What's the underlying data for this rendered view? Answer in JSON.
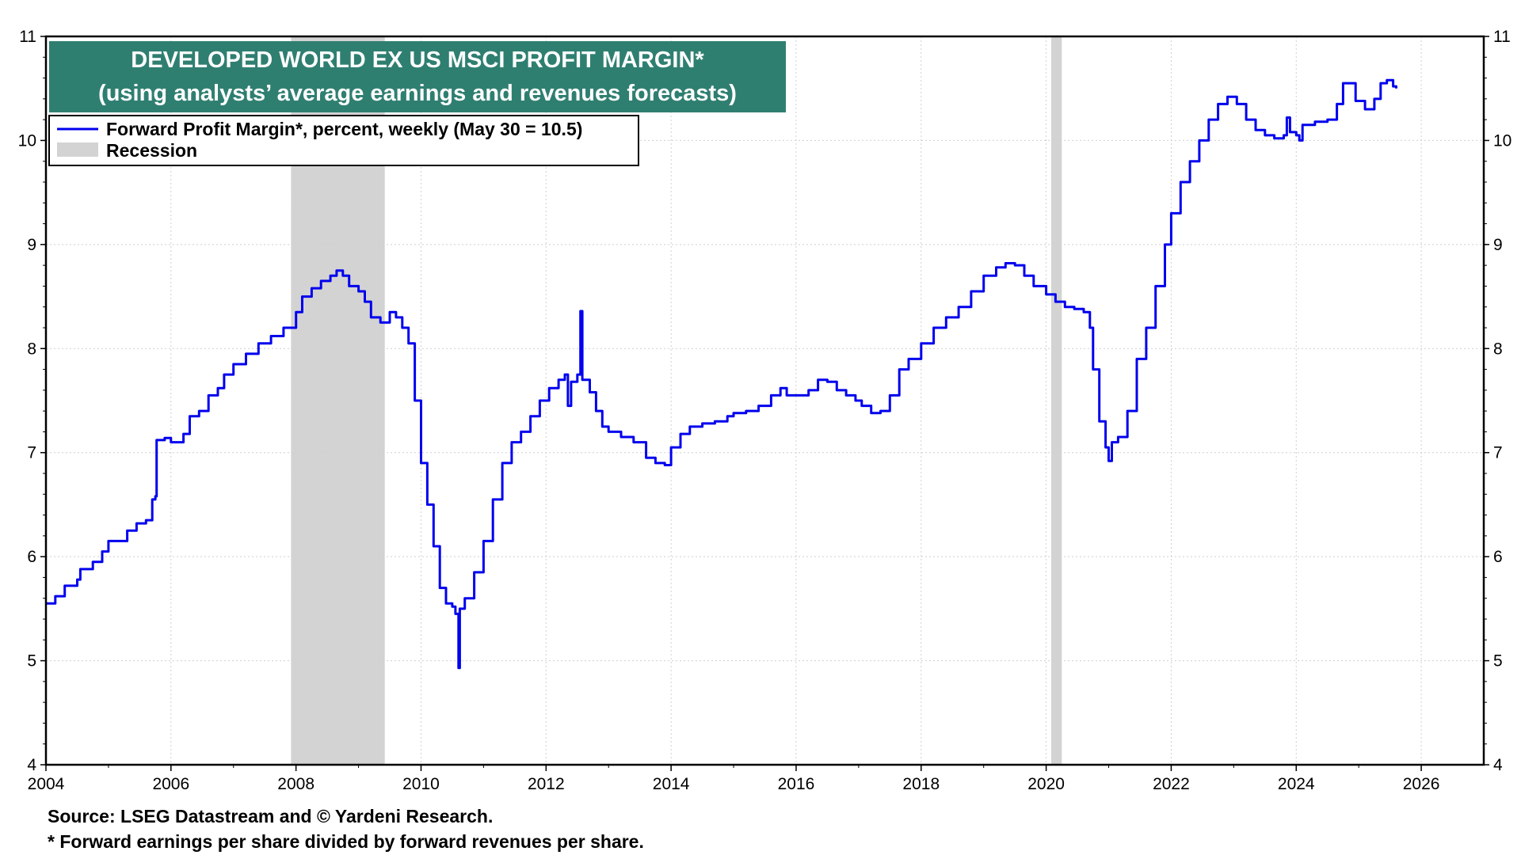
{
  "chart_data": {
    "type": "line",
    "title": "DEVELOPED WORLD EX US MSCI PROFIT MARGIN*",
    "subtitle": "(using analysts’ average earnings and revenues forecasts)",
    "x_range": [
      2004,
      2027
    ],
    "ylim": [
      4,
      11
    ],
    "x_ticks": [
      "2004",
      "2006",
      "2008",
      "2010",
      "2012",
      "2014",
      "2016",
      "2018",
      "2020",
      "2022",
      "2024",
      "2026"
    ],
    "y_ticks": [
      "4",
      "5",
      "6",
      "7",
      "8",
      "9",
      "10",
      "11"
    ],
    "grid": true,
    "legend_position": "top-left",
    "legend": [
      {
        "label": "Forward Profit Margin*, percent, weekly (May 30 = 10.5)",
        "color": "#0000ee"
      },
      {
        "label": "Recession",
        "color": "#d3d3d3"
      }
    ],
    "recessions": [
      [
        2007.92,
        2009.42
      ],
      [
        2020.08,
        2020.25
      ]
    ],
    "series": [
      {
        "name": "Forward Profit Margin",
        "color": "#0000ee",
        "points": [
          [
            2004.0,
            5.55
          ],
          [
            2004.1,
            5.55
          ],
          [
            2004.15,
            5.62
          ],
          [
            2004.3,
            5.72
          ],
          [
            2004.5,
            5.78
          ],
          [
            2004.55,
            5.88
          ],
          [
            2004.75,
            5.95
          ],
          [
            2004.9,
            6.05
          ],
          [
            2005.0,
            6.15
          ],
          [
            2005.2,
            6.15
          ],
          [
            2005.3,
            6.25
          ],
          [
            2005.45,
            6.32
          ],
          [
            2005.6,
            6.35
          ],
          [
            2005.7,
            6.55
          ],
          [
            2005.75,
            6.58
          ],
          [
            2005.77,
            7.12
          ],
          [
            2005.9,
            7.14
          ],
          [
            2006.0,
            7.1
          ],
          [
            2006.2,
            7.18
          ],
          [
            2006.3,
            7.35
          ],
          [
            2006.45,
            7.4
          ],
          [
            2006.6,
            7.55
          ],
          [
            2006.75,
            7.62
          ],
          [
            2006.85,
            7.75
          ],
          [
            2007.0,
            7.85
          ],
          [
            2007.2,
            7.95
          ],
          [
            2007.4,
            8.05
          ],
          [
            2007.6,
            8.12
          ],
          [
            2007.8,
            8.2
          ],
          [
            2008.0,
            8.35
          ],
          [
            2008.1,
            8.5
          ],
          [
            2008.25,
            8.58
          ],
          [
            2008.4,
            8.65
          ],
          [
            2008.55,
            8.7
          ],
          [
            2008.65,
            8.75
          ],
          [
            2008.75,
            8.7
          ],
          [
            2008.85,
            8.6
          ],
          [
            2009.0,
            8.55
          ],
          [
            2009.1,
            8.45
          ],
          [
            2009.2,
            8.3
          ],
          [
            2009.35,
            8.25
          ],
          [
            2009.5,
            8.35
          ],
          [
            2009.6,
            8.3
          ],
          [
            2009.7,
            8.2
          ],
          [
            2009.8,
            8.05
          ],
          [
            2009.9,
            7.5
          ],
          [
            2010.0,
            6.9
          ],
          [
            2010.1,
            6.5
          ],
          [
            2010.2,
            6.1
          ],
          [
            2010.3,
            5.7
          ],
          [
            2010.4,
            5.55
          ],
          [
            2010.5,
            5.52
          ],
          [
            2010.55,
            5.45
          ],
          [
            2010.6,
            4.93
          ],
          [
            2010.62,
            5.5
          ],
          [
            2010.7,
            5.6
          ],
          [
            2010.85,
            5.85
          ],
          [
            2011.0,
            6.15
          ],
          [
            2011.15,
            6.55
          ],
          [
            2011.3,
            6.9
          ],
          [
            2011.45,
            7.1
          ],
          [
            2011.6,
            7.2
          ],
          [
            2011.75,
            7.35
          ],
          [
            2011.9,
            7.5
          ],
          [
            2012.05,
            7.62
          ],
          [
            2012.2,
            7.7
          ],
          [
            2012.3,
            7.75
          ],
          [
            2012.35,
            7.45
          ],
          [
            2012.4,
            7.68
          ],
          [
            2012.5,
            7.75
          ],
          [
            2012.55,
            8.36
          ],
          [
            2012.58,
            7.7
          ],
          [
            2012.7,
            7.58
          ],
          [
            2012.8,
            7.4
          ],
          [
            2012.9,
            7.25
          ],
          [
            2013.0,
            7.2
          ],
          [
            2013.2,
            7.15
          ],
          [
            2013.4,
            7.1
          ],
          [
            2013.6,
            6.95
          ],
          [
            2013.75,
            6.9
          ],
          [
            2013.9,
            6.88
          ],
          [
            2014.0,
            7.05
          ],
          [
            2014.15,
            7.18
          ],
          [
            2014.3,
            7.25
          ],
          [
            2014.5,
            7.28
          ],
          [
            2014.7,
            7.3
          ],
          [
            2014.9,
            7.35
          ],
          [
            2015.0,
            7.38
          ],
          [
            2015.2,
            7.4
          ],
          [
            2015.4,
            7.45
          ],
          [
            2015.6,
            7.55
          ],
          [
            2015.75,
            7.62
          ],
          [
            2015.85,
            7.55
          ],
          [
            2016.0,
            7.55
          ],
          [
            2016.2,
            7.6
          ],
          [
            2016.35,
            7.7
          ],
          [
            2016.5,
            7.68
          ],
          [
            2016.65,
            7.6
          ],
          [
            2016.8,
            7.55
          ],
          [
            2016.95,
            7.5
          ],
          [
            2017.05,
            7.45
          ],
          [
            2017.2,
            7.38
          ],
          [
            2017.35,
            7.4
          ],
          [
            2017.5,
            7.55
          ],
          [
            2017.65,
            7.8
          ],
          [
            2017.8,
            7.9
          ],
          [
            2018.0,
            8.05
          ],
          [
            2018.2,
            8.2
          ],
          [
            2018.4,
            8.3
          ],
          [
            2018.6,
            8.4
          ],
          [
            2018.8,
            8.55
          ],
          [
            2019.0,
            8.7
          ],
          [
            2019.2,
            8.78
          ],
          [
            2019.35,
            8.82
          ],
          [
            2019.5,
            8.8
          ],
          [
            2019.65,
            8.7
          ],
          [
            2019.8,
            8.6
          ],
          [
            2020.0,
            8.52
          ],
          [
            2020.15,
            8.45
          ],
          [
            2020.3,
            8.4
          ],
          [
            2020.45,
            8.38
          ],
          [
            2020.6,
            8.35
          ],
          [
            2020.7,
            8.2
          ],
          [
            2020.75,
            7.8
          ],
          [
            2020.85,
            7.3
          ],
          [
            2020.95,
            7.05
          ],
          [
            2021.0,
            6.92
          ],
          [
            2021.05,
            7.1
          ],
          [
            2021.15,
            7.15
          ],
          [
            2021.3,
            7.4
          ],
          [
            2021.45,
            7.9
          ],
          [
            2021.6,
            8.2
          ],
          [
            2021.75,
            8.6
          ],
          [
            2021.9,
            9.0
          ],
          [
            2022.0,
            9.3
          ],
          [
            2022.15,
            9.6
          ],
          [
            2022.3,
            9.8
          ],
          [
            2022.45,
            10.0
          ],
          [
            2022.6,
            10.2
          ],
          [
            2022.75,
            10.35
          ],
          [
            2022.9,
            10.42
          ],
          [
            2023.05,
            10.35
          ],
          [
            2023.2,
            10.2
          ],
          [
            2023.35,
            10.1
          ],
          [
            2023.5,
            10.05
          ],
          [
            2023.65,
            10.02
          ],
          [
            2023.8,
            10.05
          ],
          [
            2023.85,
            10.22
          ],
          [
            2023.9,
            10.08
          ],
          [
            2024.0,
            10.05
          ],
          [
            2024.05,
            10.0
          ],
          [
            2024.1,
            10.15
          ],
          [
            2024.3,
            10.18
          ],
          [
            2024.5,
            10.2
          ],
          [
            2024.65,
            10.35
          ],
          [
            2024.75,
            10.55
          ],
          [
            2024.85,
            10.55
          ],
          [
            2024.95,
            10.38
          ],
          [
            2025.1,
            10.3
          ],
          [
            2025.25,
            10.4
          ],
          [
            2025.35,
            10.55
          ],
          [
            2025.45,
            10.58
          ],
          [
            2025.55,
            10.52
          ],
          [
            2025.6,
            10.5
          ]
        ]
      }
    ]
  },
  "footnotes": {
    "source": "Source: LSEG Datastream and © Yardeni Research.",
    "definition": "* Forward earnings per share divided by forward revenues per share."
  }
}
